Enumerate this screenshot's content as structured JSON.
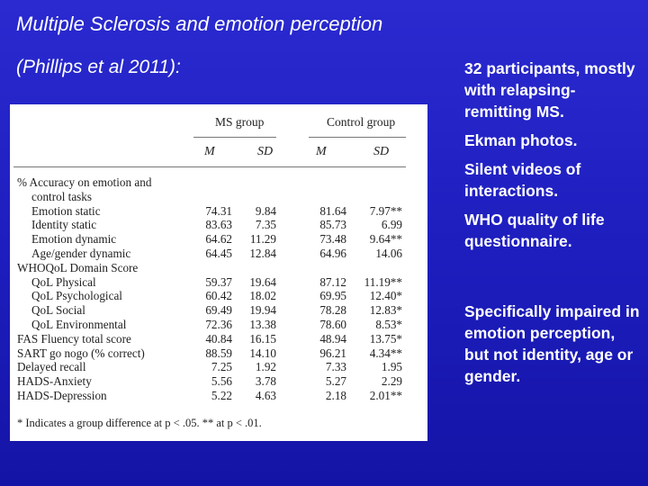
{
  "slide": {
    "title": "Multiple Sclerosis and emotion perception",
    "subtitle": "(Phillips et al 2011):"
  },
  "table": {
    "groups": [
      "MS group",
      "Control group"
    ],
    "col_headers": [
      "M",
      "SD",
      "M",
      "SD"
    ],
    "rows": [
      {
        "label": "% Accuracy on emotion and",
        "indent": false,
        "values": []
      },
      {
        "label": "control tasks",
        "indent": true,
        "values": []
      },
      {
        "label": "Emotion static",
        "indent": true,
        "values": [
          "74.31",
          "9.84",
          "81.64",
          "7.97**"
        ]
      },
      {
        "label": "Identity static",
        "indent": true,
        "values": [
          "83.63",
          "7.35",
          "85.73",
          "6.99"
        ]
      },
      {
        "label": "Emotion dynamic",
        "indent": true,
        "values": [
          "64.62",
          "11.29",
          "73.48",
          "9.64**"
        ]
      },
      {
        "label": "Age/gender dynamic",
        "indent": true,
        "values": [
          "64.45",
          "12.84",
          "64.96",
          "14.06"
        ]
      },
      {
        "label": "WHOQoL Domain Score",
        "indent": false,
        "values": []
      },
      {
        "label": "QoL Physical",
        "indent": true,
        "values": [
          "59.37",
          "19.64",
          "87.12",
          "11.19**"
        ]
      },
      {
        "label": "QoL Psychological",
        "indent": true,
        "values": [
          "60.42",
          "18.02",
          "69.95",
          "12.40*"
        ]
      },
      {
        "label": "QoL Social",
        "indent": true,
        "values": [
          "69.49",
          "19.94",
          "78.28",
          "12.83*"
        ]
      },
      {
        "label": "QoL Environmental",
        "indent": true,
        "values": [
          "72.36",
          "13.38",
          "78.60",
          "8.53*"
        ]
      },
      {
        "label": "FAS Fluency total score",
        "indent": false,
        "values": [
          "40.84",
          "16.15",
          "48.94",
          "13.75*"
        ]
      },
      {
        "label": "SART go nogo (% correct)",
        "indent": false,
        "values": [
          "88.59",
          "14.10",
          "96.21",
          "4.34**"
        ]
      },
      {
        "label": "Delayed recall",
        "indent": false,
        "values": [
          "7.25",
          "1.92",
          "7.33",
          "1.95"
        ]
      },
      {
        "label": "HADS-Anxiety",
        "indent": false,
        "values": [
          "5.56",
          "3.78",
          "5.27",
          "2.29"
        ]
      },
      {
        "label": "HADS-Depression",
        "indent": false,
        "values": [
          "5.22",
          "4.63",
          "2.18",
          "2.01**"
        ]
      }
    ],
    "footnote": "* Indicates a group difference at p < .05.   ** at p < .01."
  },
  "bullets": [
    "32 participants, mostly with relapsing-remitting MS.",
    "Ekman photos.",
    "Silent videos of interactions.",
    "WHO quality of life questionnaire.",
    "Specifically impaired in emotion perception, but not identity, age or gender."
  ]
}
